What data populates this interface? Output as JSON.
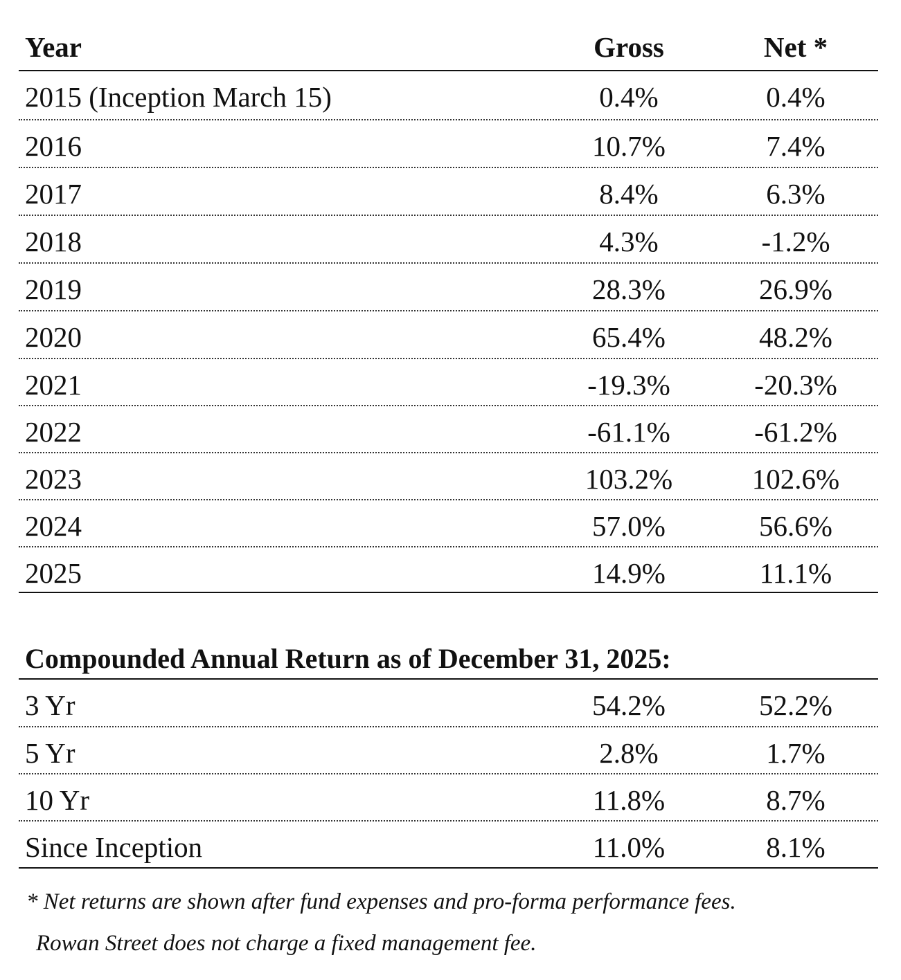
{
  "table": {
    "headers": {
      "year": "Year",
      "gross": "Gross",
      "net": "Net *"
    },
    "rows": [
      {
        "year": "2015 (Inception March 15)",
        "gross": "0.4%",
        "net": "0.4%"
      },
      {
        "year": "2016",
        "gross": "10.7%",
        "net": "7.4%"
      },
      {
        "year": "2017",
        "gross": "8.4%",
        "net": "6.3%"
      },
      {
        "year": "2018",
        "gross": "4.3%",
        "net": "-1.2%"
      },
      {
        "year": "2019",
        "gross": "28.3%",
        "net": "26.9%"
      },
      {
        "year": "2020",
        "gross": "65.4%",
        "net": "48.2%"
      },
      {
        "year": "2021",
        "gross": "-19.3%",
        "net": "-20.3%"
      },
      {
        "year": "2022",
        "gross": "-61.1%",
        "net": "-61.2%"
      },
      {
        "year": "2023",
        "gross": "103.2%",
        "net": "102.6%"
      },
      {
        "year": "2024",
        "gross": "57.0%",
        "net": "56.6%"
      },
      {
        "year": "2025",
        "gross": "14.9%",
        "net": "11.1%"
      }
    ]
  },
  "cagr": {
    "title": "Compounded Annual Return as of December 31, 2025:",
    "rows": [
      {
        "period": "3 Yr",
        "gross": "54.2%",
        "net": "52.2%"
      },
      {
        "period": "5 Yr",
        "gross": "2.8%",
        "net": "1.7%"
      },
      {
        "period": "10 Yr",
        "gross": "11.8%",
        "net": "8.7%"
      },
      {
        "period": "Since Inception",
        "gross": "11.0%",
        "net": "8.1%"
      }
    ]
  },
  "footnote": {
    "line1": "* Net returns are shown after fund expenses and pro-forma performance fees.",
    "line2": "Rowan Street does not charge a fixed management fee."
  }
}
